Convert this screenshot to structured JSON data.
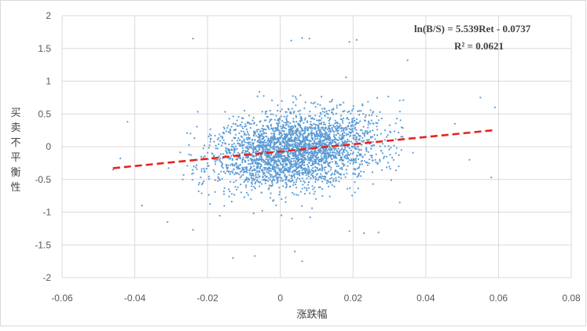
{
  "chart_data": {
    "type": "scatter",
    "title": "",
    "xlabel": "涨跌幅",
    "ylabel": "买卖不平衡性",
    "xlim": [
      -0.06,
      0.08
    ],
    "ylim": [
      -2,
      2
    ],
    "x_ticks": [
      "-0.06",
      "-0.04",
      "-0.02",
      "0",
      "0.02",
      "0.04",
      "0.06",
      "0.08"
    ],
    "y_ticks": [
      "2",
      "1.5",
      "1",
      "0.5",
      "0",
      "-0.5",
      "-1",
      "-1.5",
      "-2"
    ],
    "grid": true,
    "point_color": "#5B9BD5",
    "trendline": {
      "type": "linear",
      "slope": 5.539,
      "intercept": -0.0737,
      "x_range": [
        -0.046,
        0.059
      ],
      "color": "#E8231D",
      "style": "dashed"
    },
    "annotations": {
      "equation": "ln(B/S) = 5.539Ret - 0.0737",
      "r_squared": "R² = 0.0621"
    },
    "series": [
      {
        "approx_point_count": 3000,
        "x_range": [
          -0.047,
          0.06
        ],
        "y_range": [
          -1.75,
          1.68
        ],
        "sample_points": [
          [
            -0.024,
            1.65
          ],
          [
            0.003,
            1.62
          ],
          [
            0.006,
            1.66
          ],
          [
            0.008,
            1.65
          ],
          [
            0.019,
            1.6
          ],
          [
            0.021,
            1.63
          ],
          [
            0.035,
            1.32
          ],
          [
            -0.042,
            0.38
          ],
          [
            -0.038,
            -0.9
          ],
          [
            -0.031,
            -1.15
          ],
          [
            -0.024,
            -1.27
          ],
          [
            -0.013,
            -1.7
          ],
          [
            -0.007,
            -1.67
          ],
          [
            0.004,
            -1.6
          ],
          [
            0.006,
            -1.75
          ],
          [
            0.019,
            -1.29
          ],
          [
            0.023,
            -1.32
          ],
          [
            0.027,
            -1.31
          ],
          [
            0.055,
            0.75
          ],
          [
            0.058,
            -0.47
          ],
          [
            0.059,
            0.6
          ],
          [
            -0.046,
            -0.35
          ],
          [
            -0.044,
            -0.18
          ],
          [
            0.048,
            0.35
          ],
          [
            0.052,
            -0.2
          ]
        ]
      }
    ]
  }
}
